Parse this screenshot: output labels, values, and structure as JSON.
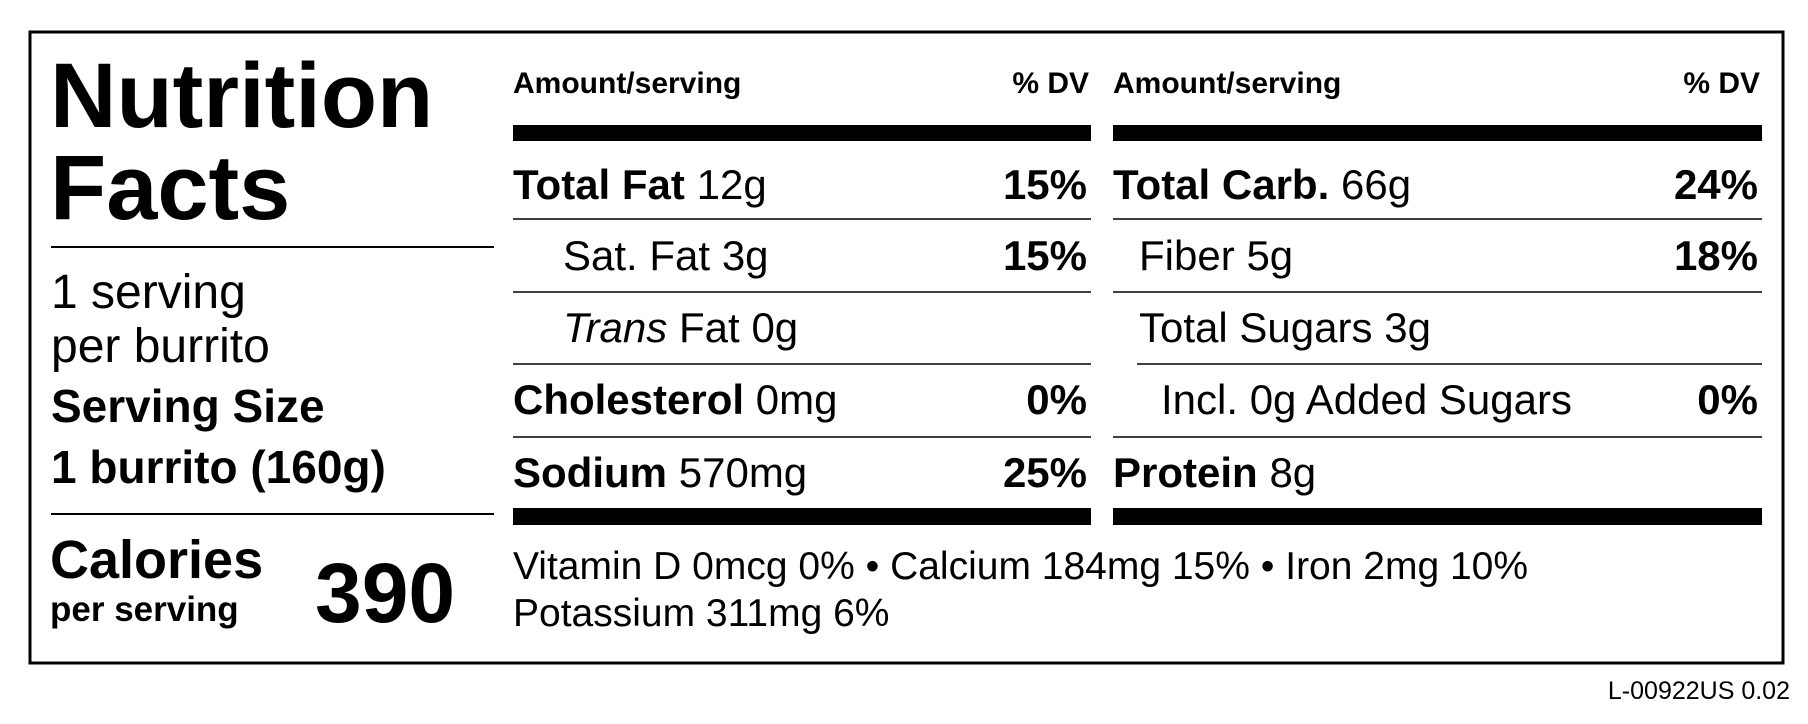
{
  "header": {
    "title_line1": "Nutrition",
    "title_line2": "Facts"
  },
  "servings": {
    "line1": "1 serving",
    "line2": "per burrito",
    "size_label": "Serving Size",
    "size_value": "1 burrito (160g)"
  },
  "calories": {
    "label": "Calories",
    "sub": "per serving",
    "value": "390"
  },
  "columns": [
    {
      "amount_header": "Amount/serving",
      "dv_header": "% DV",
      "rows": [
        {
          "name": "Total Fat",
          "amount": "12g",
          "dv": "15%"
        },
        {
          "name": "Sat. Fat",
          "amount": "3g",
          "dv": "15%"
        },
        {
          "prefix": "Trans",
          "name": "Fat",
          "amount": "0g"
        },
        {
          "name": "Cholesterol",
          "amount": "0mg",
          "dv": "0%"
        },
        {
          "name": "Sodium",
          "amount": "570mg",
          "dv": "25%"
        }
      ]
    },
    {
      "amount_header": "Amount/serving",
      "dv_header": "% DV",
      "rows": [
        {
          "name": "Total Carb.",
          "amount": "66g",
          "dv": "24%"
        },
        {
          "name": "Fiber",
          "amount": "5g",
          "dv": "18%"
        },
        {
          "name": "Total Sugars",
          "amount": "3g"
        },
        {
          "name": "Incl. 0g Added Sugars",
          "dv": "0%"
        },
        {
          "name": "Protein",
          "amount": "8g"
        }
      ]
    }
  ],
  "micronutrients": [
    "Vitamin D 0mcg 0% • Calcium 184mg 15% • Iron 2mg 10%",
    "Potassium 311mg 6%"
  ],
  "footer_code": "L-00922US 0.02"
}
